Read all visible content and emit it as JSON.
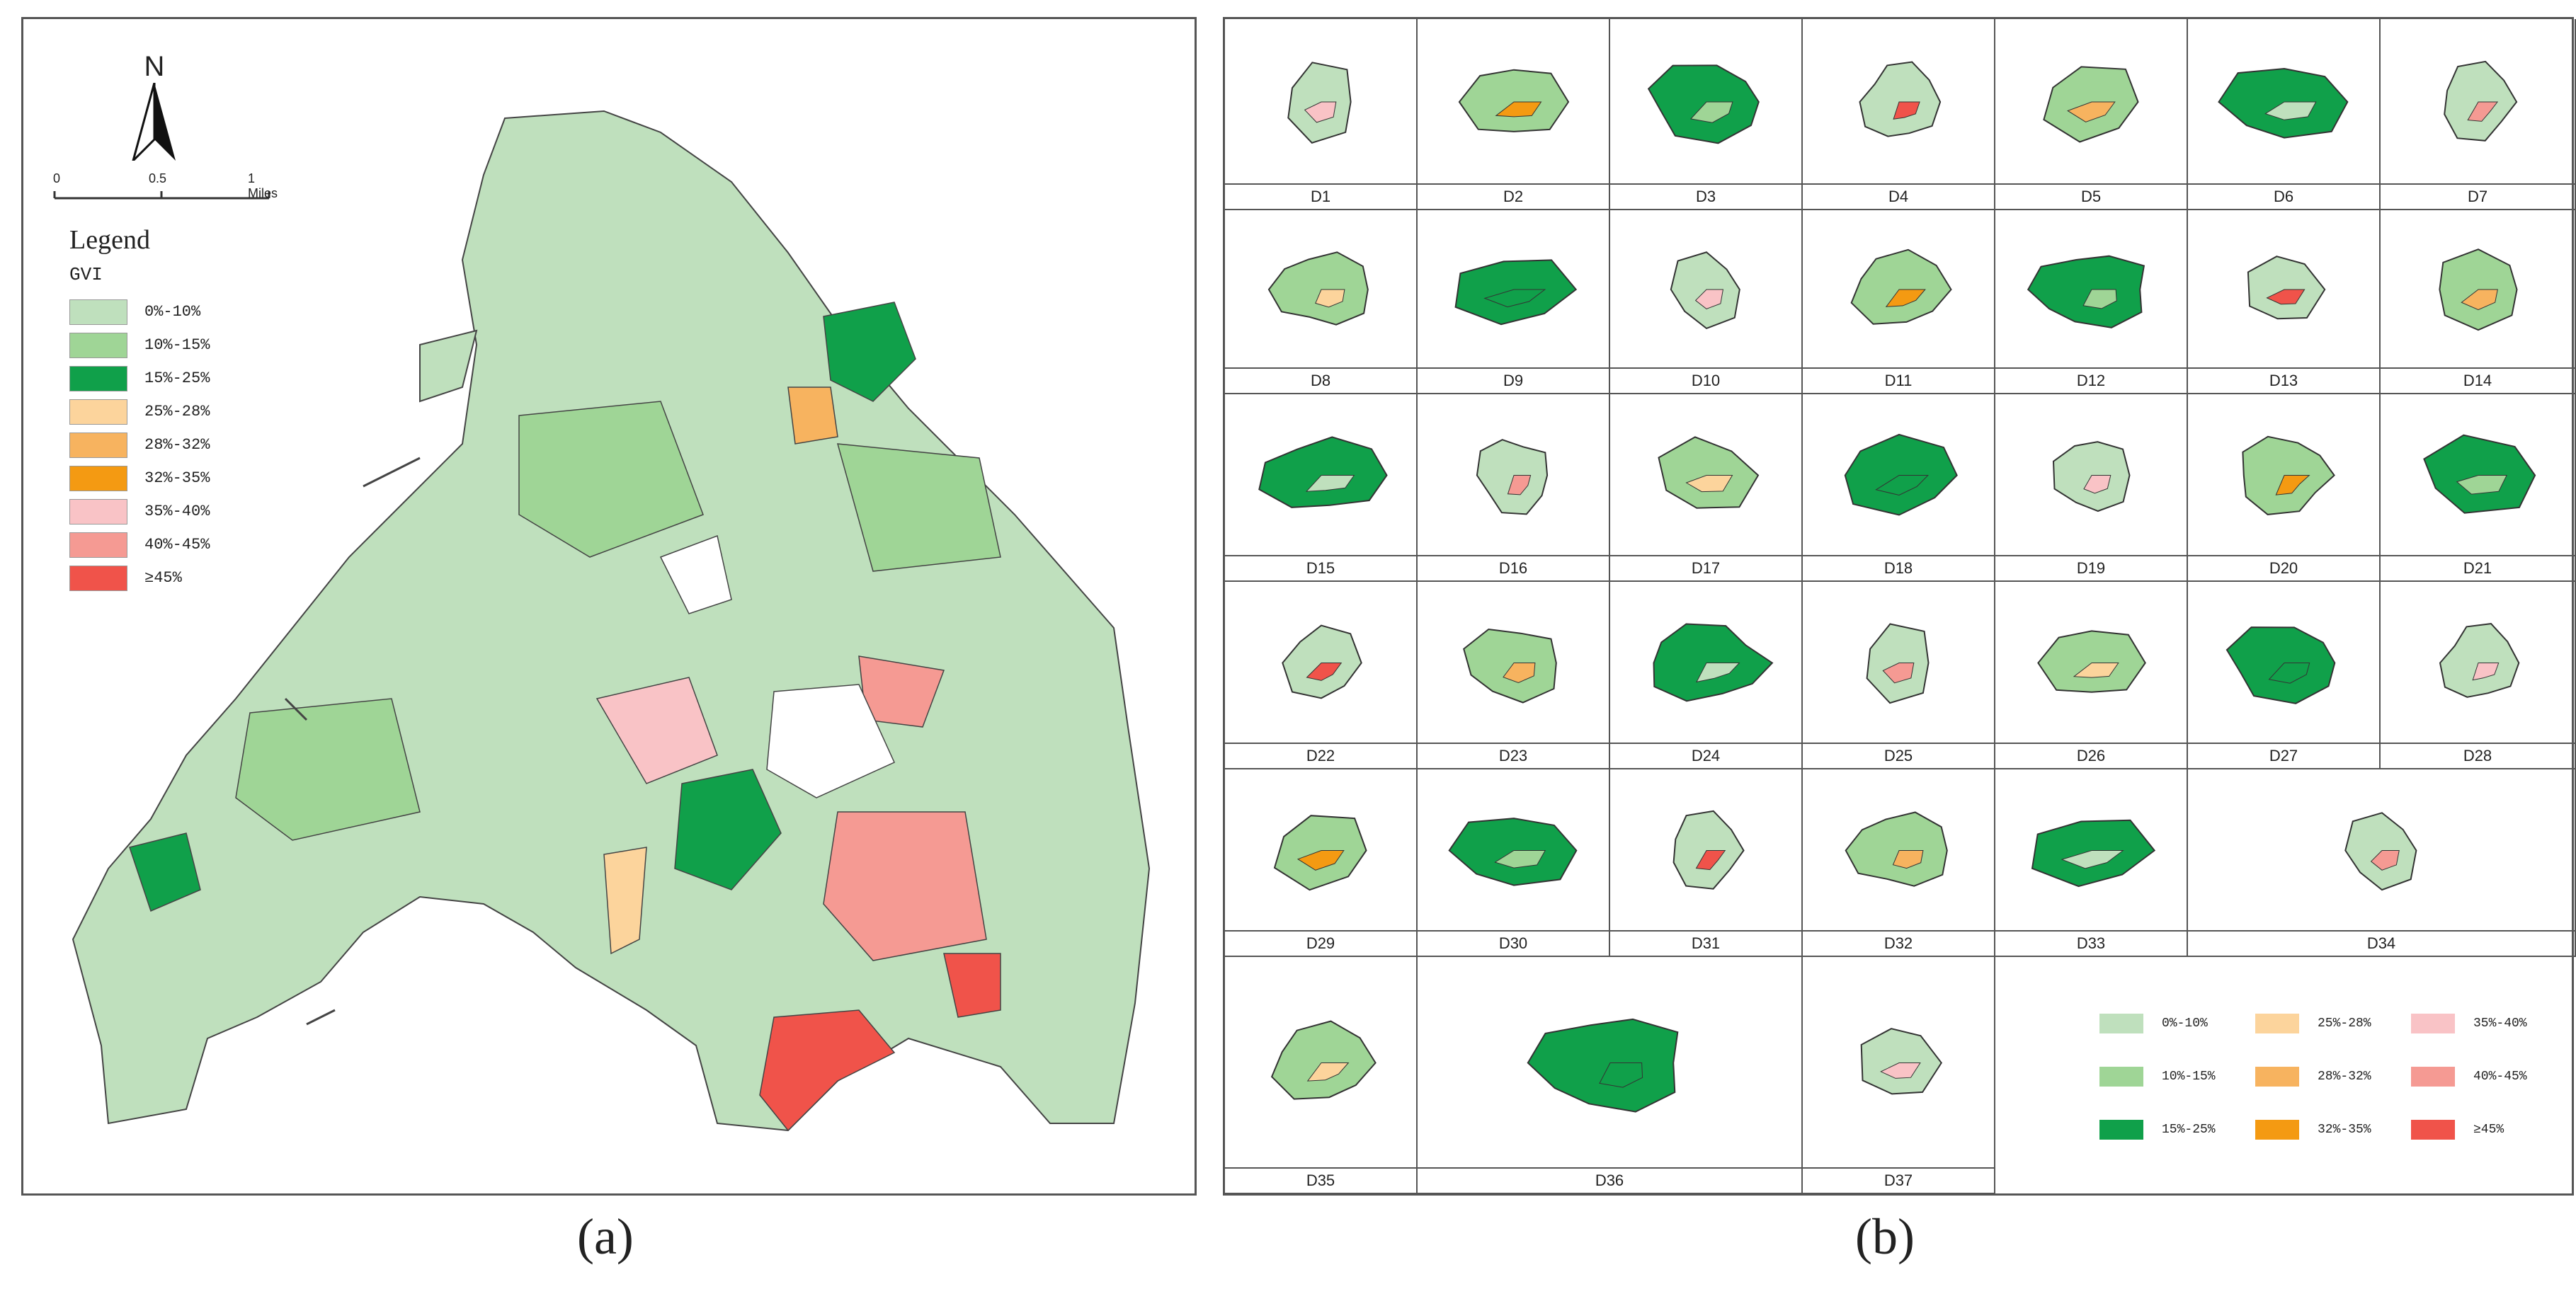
{
  "panel_a": {
    "north_label": "N",
    "scale_ticks": [
      "0",
      "0.5",
      "1 Miles"
    ],
    "legend_title": "Legend",
    "legend_subtitle": "GVI",
    "legend_items": [
      {
        "label": "0%-10%",
        "color": "#bfe0bd"
      },
      {
        "label": "10%-15%",
        "color": "#9fd596"
      },
      {
        "label": "15%-25%",
        "color": "#10a04a"
      },
      {
        "label": "25%-28%",
        "color": "#fcd49c"
      },
      {
        "label": "28%-32%",
        "color": "#f7b35f"
      },
      {
        "label": "32%-35%",
        "color": "#f49a12"
      },
      {
        "label": "35%-40%",
        "color": "#f9c3c6"
      },
      {
        "label": "40%-45%",
        "color": "#f59a93"
      },
      {
        "label": "≥45%",
        "color": "#f0534a"
      }
    ],
    "caption": "(a)"
  },
  "panel_b": {
    "districts": [
      "D1",
      "D2",
      "D3",
      "D4",
      "D5",
      "D6",
      "D7",
      "D8",
      "D9",
      "D10",
      "D11",
      "D12",
      "D13",
      "D14",
      "D15",
      "D16",
      "D17",
      "D18",
      "D19",
      "D20",
      "D21",
      "D22",
      "D23",
      "D24",
      "D25",
      "D26",
      "D27",
      "D28",
      "D29",
      "D30",
      "D31",
      "D32",
      "D33",
      "D34",
      "D35",
      "D36",
      "D37"
    ],
    "legend_items": [
      {
        "label": "0%-10%",
        "color": "#bfe0bd"
      },
      {
        "label": "25%-28%",
        "color": "#fcd49c"
      },
      {
        "label": "35%-40%",
        "color": "#f9c3c6"
      },
      {
        "label": "10%-15%",
        "color": "#9fd596"
      },
      {
        "label": "28%-32%",
        "color": "#f7b35f"
      },
      {
        "label": "40%-45%",
        "color": "#f59a93"
      },
      {
        "label": "15%-25%",
        "color": "#10a04a"
      },
      {
        "label": "32%-35%",
        "color": "#f49a12"
      },
      {
        "label": "≥45%",
        "color": "#f0534a"
      }
    ],
    "caption": "(b)"
  }
}
